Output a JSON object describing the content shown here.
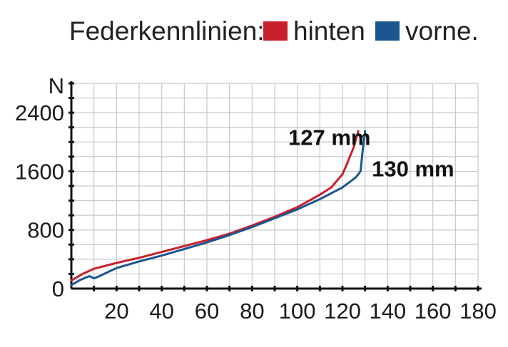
{
  "legend": {
    "title": "Federkennlinien:",
    "entries": [
      {
        "label": "hinten",
        "color": "#c8202a"
      },
      {
        "label": "vorne.",
        "color": "#1a5690"
      }
    ]
  },
  "chart_data": {
    "type": "line",
    "title": "Federkennlinien",
    "xlabel": "",
    "ylabel": "N",
    "xlim": [
      0,
      180
    ],
    "ylim": [
      0,
      2800
    ],
    "x_ticks": [
      20,
      40,
      60,
      80,
      100,
      120,
      140,
      160,
      180
    ],
    "y_ticks": [
      0,
      800,
      1600,
      2400
    ],
    "grid": true,
    "series": [
      {
        "name": "hinten",
        "color": "#c8202a",
        "points": [
          [
            0,
            110
          ],
          [
            5,
            200
          ],
          [
            10,
            270
          ],
          [
            20,
            350
          ],
          [
            30,
            420
          ],
          [
            40,
            500
          ],
          [
            50,
            580
          ],
          [
            60,
            660
          ],
          [
            70,
            750
          ],
          [
            80,
            860
          ],
          [
            90,
            980
          ],
          [
            100,
            1110
          ],
          [
            110,
            1280
          ],
          [
            115,
            1380
          ],
          [
            120,
            1560
          ],
          [
            122,
            1700
          ],
          [
            125,
            1930
          ],
          [
            127,
            2150
          ]
        ]
      },
      {
        "name": "vorne",
        "color": "#1a5690",
        "points": [
          [
            0,
            50
          ],
          [
            4,
            120
          ],
          [
            8,
            170
          ],
          [
            10,
            140
          ],
          [
            11,
            150
          ],
          [
            20,
            280
          ],
          [
            30,
            370
          ],
          [
            40,
            450
          ],
          [
            50,
            540
          ],
          [
            60,
            630
          ],
          [
            70,
            730
          ],
          [
            80,
            840
          ],
          [
            90,
            960
          ],
          [
            100,
            1080
          ],
          [
            110,
            1220
          ],
          [
            120,
            1380
          ],
          [
            126,
            1520
          ],
          [
            128,
            1600
          ],
          [
            129,
            1900
          ],
          [
            130,
            2150
          ]
        ]
      }
    ],
    "annotations": [
      {
        "text": "127 mm",
        "x": 96,
        "y": 1960
      },
      {
        "text": "130 mm",
        "x": 133,
        "y": 1530
      }
    ]
  }
}
